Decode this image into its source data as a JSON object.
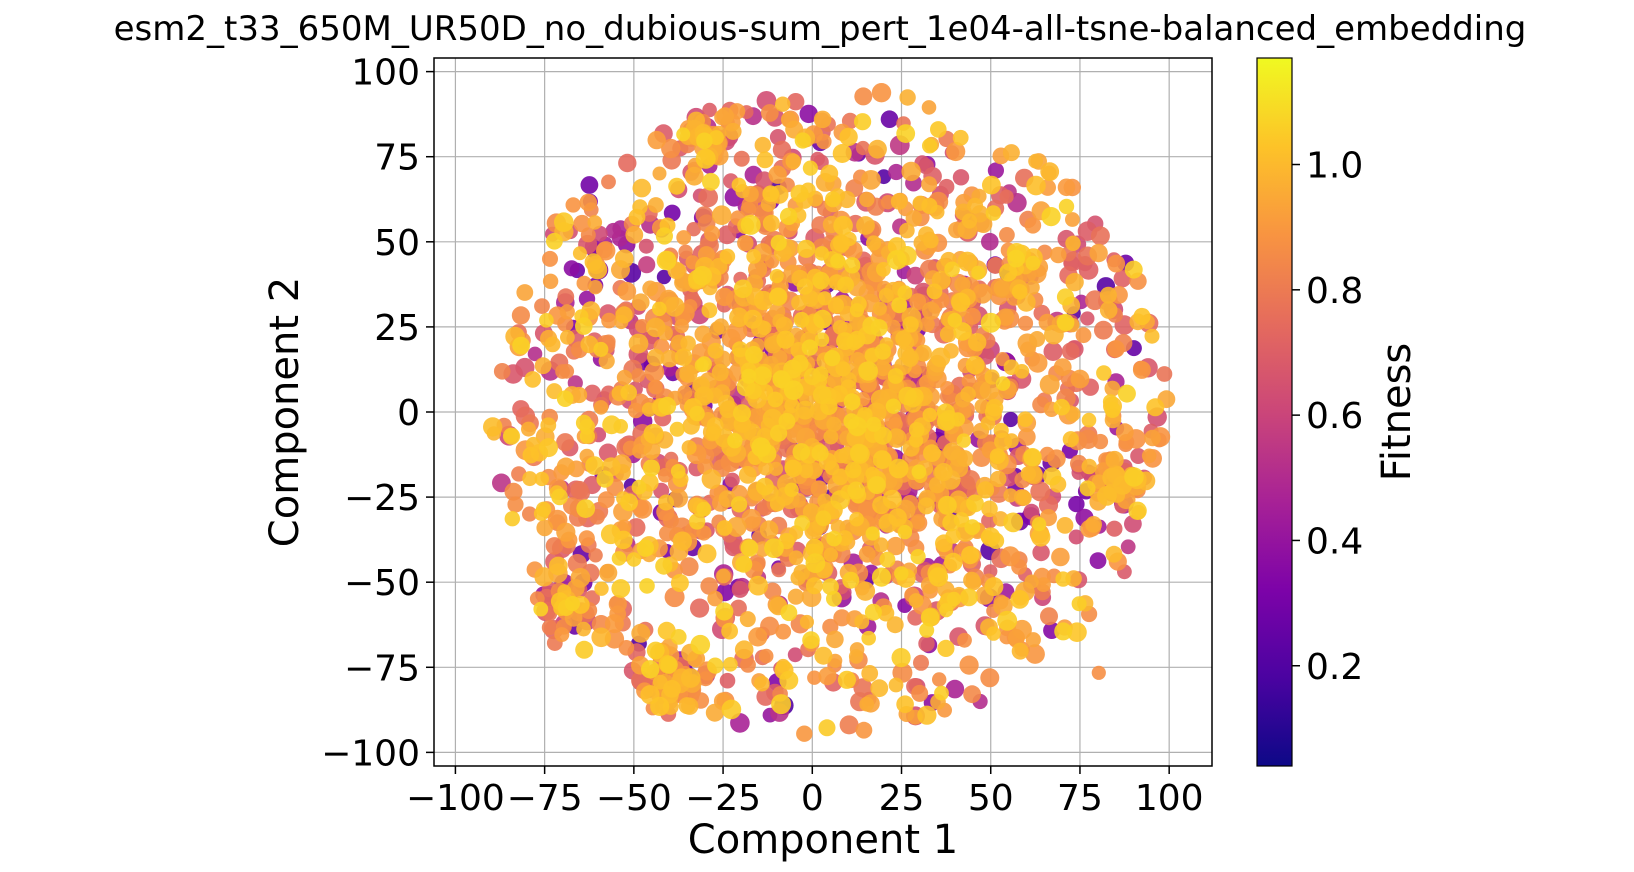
{
  "chart_data": {
    "type": "scatter",
    "title": "esm2_t33_650M_UR50D_no_dubious-sum_pert_1e04-all-tsne-balanced_embedding",
    "xlabel": "Component 1",
    "ylabel": "Component 2",
    "xlim": [
      -106,
      112
    ],
    "ylim": [
      -104,
      104
    ],
    "xticks": [
      -100,
      -75,
      -50,
      -25,
      0,
      25,
      50,
      75,
      100
    ],
    "xtick_labels": [
      "−100",
      "−75",
      "−50",
      "−25",
      "0",
      "25",
      "50",
      "75",
      "100"
    ],
    "yticks": [
      -100,
      -75,
      -50,
      -25,
      0,
      25,
      50,
      75,
      100
    ],
    "ytick_labels": [
      "−100",
      "−75",
      "−50",
      "−25",
      "0",
      "25",
      "50",
      "75",
      "100"
    ],
    "grid": true,
    "colormap": "plasma",
    "colorbar": {
      "label": "Fitness",
      "range": [
        0.04,
        1.17
      ],
      "ticks": [
        0.2,
        0.4,
        0.6,
        0.8,
        1.0
      ],
      "tick_labels": [
        "0.2",
        "0.4",
        "0.6",
        "0.8",
        "1.0"
      ]
    },
    "point_count": 2600,
    "distribution": "roughly circular cloud centered near (5, 0), radius about 100; densest near the center; values mostly 0.7-1.05 with sparse low-fitness points",
    "clusters": [
      {
        "x": -40,
        "y": -80
      },
      {
        "x": 57,
        "y": 38
      },
      {
        "x": -30,
        "y": 82
      },
      {
        "x": 85,
        "y": -20
      },
      {
        "x": -70,
        "y": -57
      }
    ]
  }
}
